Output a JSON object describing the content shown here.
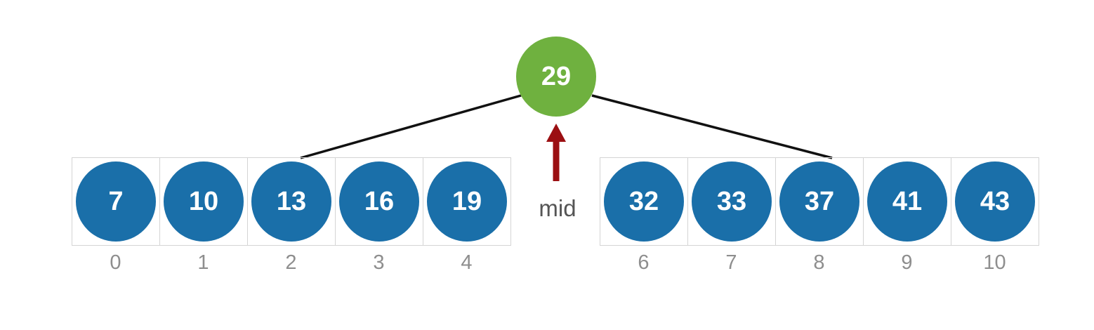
{
  "diagram": {
    "root": {
      "value": "29"
    },
    "pointer": {
      "label": "mid"
    },
    "left_array": {
      "values": [
        "7",
        "10",
        "13",
        "16",
        "19"
      ],
      "indices": [
        "0",
        "1",
        "2",
        "3",
        "4"
      ]
    },
    "right_array": {
      "values": [
        "32",
        "33",
        "37",
        "41",
        "43"
      ],
      "indices": [
        "6",
        "7",
        "8",
        "9",
        "10"
      ]
    },
    "colors": {
      "root_node": "#6fb13f",
      "array_node": "#1a6fa9",
      "arrow": "#9b0f12",
      "edge": "#111111",
      "cell_border": "#d4d4d4",
      "index_text": "#8e8e8e"
    }
  }
}
